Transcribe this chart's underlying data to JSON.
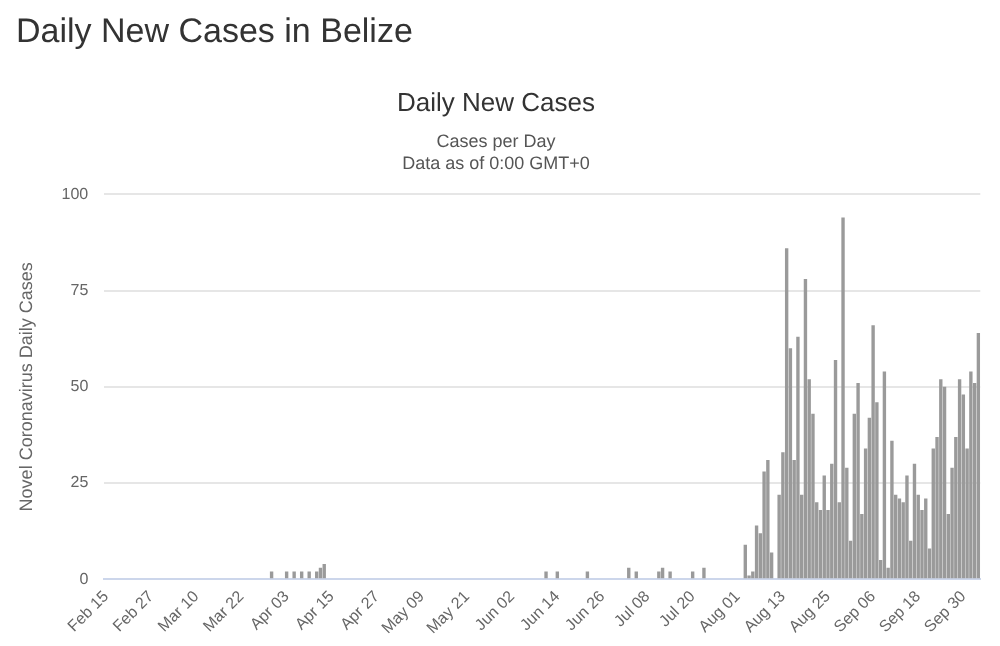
{
  "chart_data": {
    "type": "bar",
    "title": "Daily New Cases in Belize",
    "subtitle": "Daily New Cases",
    "annotations": [
      "Cases per Day",
      "Data as of 0:00 GMT+0"
    ],
    "ylabel": "Novel Coronavirus Daily Cases",
    "ylim": [
      0,
      100
    ],
    "yticks": [
      0,
      25,
      50,
      75,
      100
    ],
    "grid": "y",
    "legend": false,
    "categories": [
      "Feb 15",
      null,
      null,
      null,
      null,
      null,
      null,
      null,
      null,
      null,
      null,
      null,
      "Feb 27",
      null,
      null,
      null,
      null,
      null,
      null,
      null,
      null,
      null,
      null,
      null,
      "Mar 10",
      null,
      null,
      null,
      null,
      null,
      null,
      null,
      null,
      null,
      null,
      null,
      "Mar 22",
      null,
      null,
      null,
      null,
      null,
      null,
      null,
      null,
      null,
      null,
      null,
      "Apr 03",
      null,
      null,
      null,
      null,
      null,
      null,
      null,
      null,
      null,
      null,
      null,
      "Apr 15",
      null,
      null,
      null,
      null,
      null,
      null,
      null,
      null,
      null,
      null,
      null,
      "Apr 27",
      null,
      null,
      null,
      null,
      null,
      null,
      null,
      null,
      null,
      null,
      null,
      "May 09",
      null,
      null,
      null,
      null,
      null,
      null,
      null,
      null,
      null,
      null,
      null,
      "May 21",
      null,
      null,
      null,
      null,
      null,
      null,
      null,
      null,
      null,
      null,
      null,
      "Jun 02",
      null,
      null,
      null,
      null,
      null,
      null,
      null,
      null,
      null,
      null,
      null,
      "Jun 14",
      null,
      null,
      null,
      null,
      null,
      null,
      null,
      null,
      null,
      null,
      null,
      "Jun 26",
      null,
      null,
      null,
      null,
      null,
      null,
      null,
      null,
      null,
      null,
      null,
      "Jul 08",
      null,
      null,
      null,
      null,
      null,
      null,
      null,
      null,
      null,
      null,
      null,
      "Jul 20",
      null,
      null,
      null,
      null,
      null,
      null,
      null,
      null,
      null,
      null,
      null,
      "Aug 01",
      null,
      null,
      null,
      null,
      null,
      null,
      null,
      null,
      null,
      null,
      null,
      "Aug 13",
      null,
      null,
      null,
      null,
      null,
      null,
      null,
      null,
      null,
      null,
      null,
      "Aug 25",
      null,
      null,
      null,
      null,
      null,
      null,
      null,
      null,
      null,
      null,
      null,
      "Sep 06",
      null,
      null,
      null,
      null,
      null,
      null,
      null,
      null,
      null,
      null,
      null,
      "Sep 18",
      null,
      null,
      null,
      null,
      null,
      null,
      null,
      null,
      null,
      null,
      null,
      "Sep 30",
      null,
      null,
      null,
      null
    ],
    "series": [
      {
        "color": "#9a9a9a",
        "values": [
          0,
          0,
          0,
          0,
          0,
          0,
          0,
          0,
          0,
          0,
          0,
          0,
          0,
          0,
          0,
          0,
          0,
          0,
          0,
          0,
          0,
          0,
          0,
          0,
          0,
          0,
          0,
          0,
          0,
          0,
          0,
          0,
          0,
          0,
          0,
          0,
          0,
          0,
          0,
          0,
          0,
          0,
          0,
          0,
          2,
          0,
          0,
          0,
          2,
          0,
          2,
          0,
          2,
          0,
          2,
          0,
          2,
          3,
          4,
          0,
          0,
          0,
          0,
          0,
          0,
          0,
          0,
          0,
          0,
          0,
          0,
          0,
          0,
          0,
          0,
          0,
          0,
          0,
          0,
          0,
          0,
          0,
          0,
          0,
          0,
          0,
          0,
          0,
          0,
          0,
          0,
          0,
          0,
          0,
          0,
          0,
          0,
          0,
          0,
          0,
          0,
          0,
          0,
          0,
          0,
          0,
          0,
          0,
          0,
          0,
          0,
          0,
          0,
          0,
          0,
          0,
          0,
          2,
          0,
          0,
          2,
          0,
          0,
          0,
          0,
          0,
          0,
          0,
          2,
          0,
          0,
          0,
          0,
          0,
          0,
          0,
          0,
          0,
          0,
          3,
          0,
          2,
          0,
          0,
          0,
          0,
          0,
          2,
          3,
          0,
          2,
          0,
          0,
          0,
          0,
          0,
          2,
          0,
          0,
          3,
          0,
          0,
          0,
          0,
          0,
          0,
          0,
          0,
          0,
          0,
          9,
          1,
          2,
          14,
          12,
          28,
          31,
          7,
          0,
          22,
          33,
          86,
          60,
          31,
          63,
          22,
          78,
          52,
          43,
          20,
          18,
          27,
          18,
          30,
          57,
          20,
          94,
          29,
          10,
          43,
          51,
          17,
          34,
          42,
          66,
          46,
          5,
          54,
          3,
          36,
          22,
          21,
          20,
          27,
          10,
          30,
          22,
          18,
          21,
          8,
          34,
          37,
          52,
          50,
          17,
          29,
          37,
          52,
          48,
          34,
          54,
          51,
          64
        ]
      }
    ]
  }
}
